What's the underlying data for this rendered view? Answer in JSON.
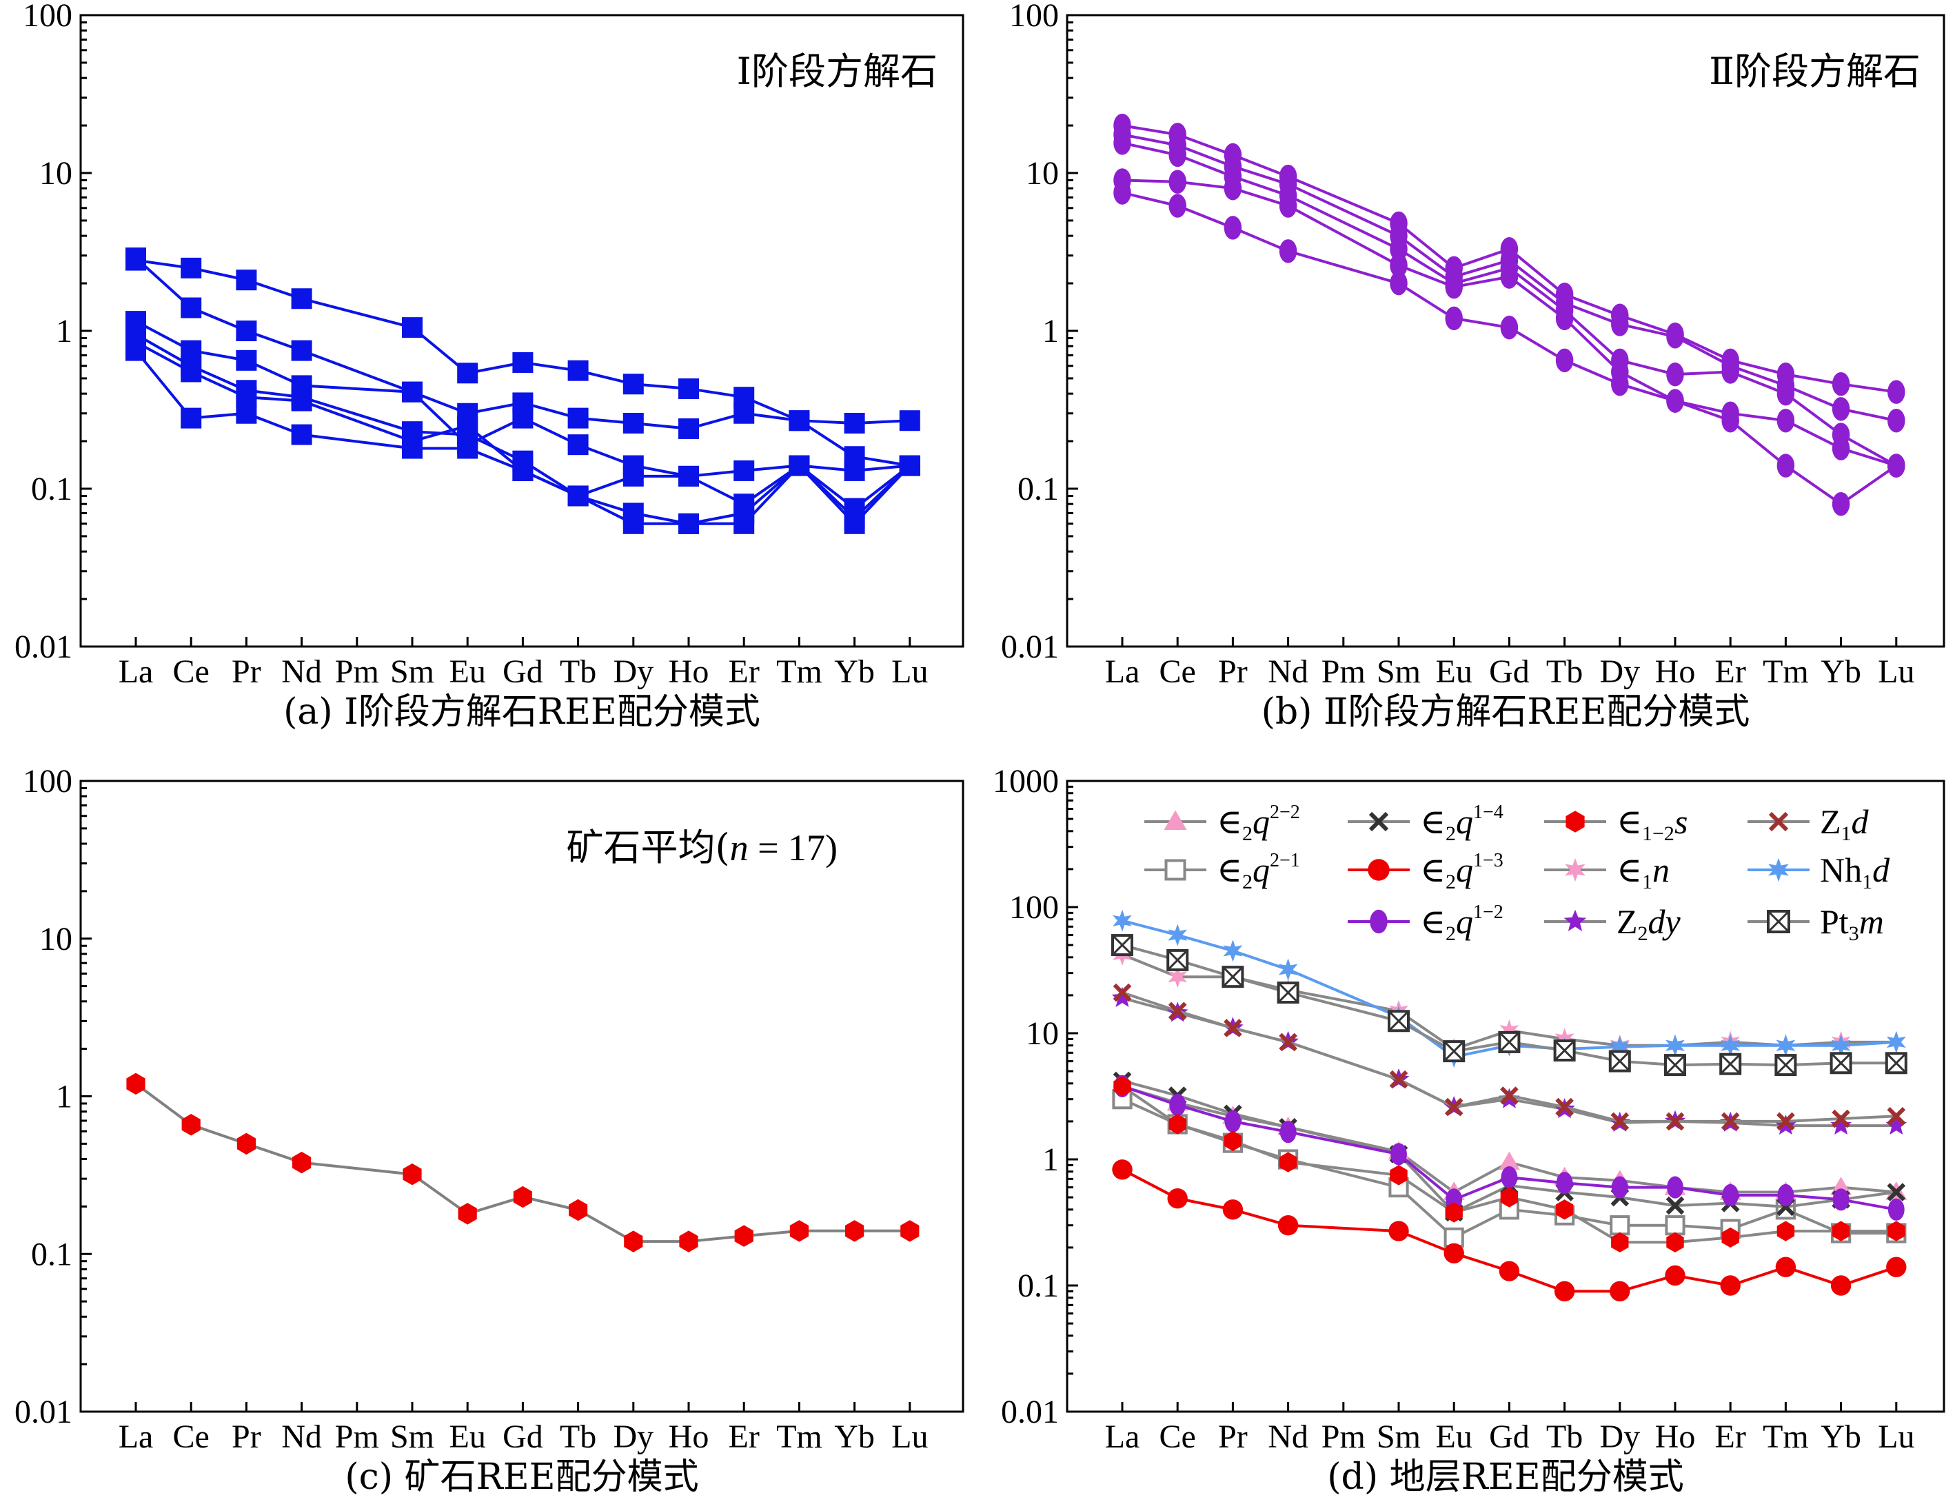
{
  "chart_data": [
    {
      "type": "line",
      "panel": "a",
      "title": "Ⅰ阶段方解石",
      "caption": "(a) Ⅰ阶段方解石REE配分模式",
      "x": [
        "La",
        "Ce",
        "Pr",
        "Nd",
        "Pm",
        "Sm",
        "Eu",
        "Gd",
        "Tb",
        "Dy",
        "Ho",
        "Er",
        "Tm",
        "Yb",
        "Lu"
      ],
      "yscale": "log",
      "ylim": [
        0.01,
        100
      ],
      "yticks": [
        "0.01",
        "0.1",
        "1",
        "10",
        "100"
      ],
      "color": "#0a14e6",
      "marker": "square",
      "series": [
        {
          "values": [
            2.8,
            2.5,
            2.1,
            1.6,
            null,
            1.05,
            0.54,
            0.63,
            0.56,
            0.46,
            0.43,
            0.38,
            0.27,
            0.26,
            0.27
          ]
        },
        {
          "values": [
            2.9,
            1.4,
            1.0,
            0.75,
            null,
            0.41,
            0.3,
            0.35,
            0.28,
            0.26,
            0.24,
            0.3,
            0.27,
            0.16,
            0.14
          ]
        },
        {
          "values": [
            1.15,
            0.75,
            0.65,
            0.45,
            null,
            0.41,
            0.19,
            0.28,
            0.19,
            0.14,
            0.12,
            0.13,
            0.14,
            0.13,
            0.14
          ]
        },
        {
          "values": [
            0.95,
            0.6,
            0.42,
            0.38,
            null,
            0.23,
            0.22,
            0.15,
            0.09,
            0.12,
            0.12,
            0.08,
            0.14,
            0.075,
            0.14
          ]
        },
        {
          "values": [
            0.85,
            0.55,
            0.38,
            0.36,
            null,
            0.2,
            0.25,
            0.13,
            0.09,
            0.07,
            0.06,
            0.07,
            0.14,
            0.065,
            0.14
          ]
        },
        {
          "values": [
            0.75,
            0.28,
            0.3,
            0.22,
            null,
            0.18,
            0.18,
            0.13,
            0.09,
            0.06,
            0.06,
            0.06,
            0.14,
            0.06,
            0.14
          ]
        }
      ]
    },
    {
      "type": "line",
      "panel": "b",
      "title": "Ⅱ阶段方解石",
      "caption": "(b) Ⅱ阶段方解石REE配分模式",
      "x": [
        "La",
        "Ce",
        "Pr",
        "Nd",
        "Pm",
        "Sm",
        "Eu",
        "Gd",
        "Tb",
        "Dy",
        "Ho",
        "Er",
        "Tm",
        "Yb",
        "Lu"
      ],
      "yscale": "log",
      "ylim": [
        0.01,
        100
      ],
      "yticks": [
        "0.01",
        "0.1",
        "1",
        "10",
        "100"
      ],
      "color": "#8e1fd0",
      "marker": "ellipse",
      "series": [
        {
          "values": [
            20,
            17.5,
            13,
            9.5,
            null,
            4.8,
            2.5,
            3.3,
            1.7,
            1.25,
            0.95,
            0.65,
            0.53,
            0.46,
            0.41
          ]
        },
        {
          "values": [
            17.5,
            15,
            11,
            8.5,
            null,
            4.0,
            2.2,
            2.8,
            1.5,
            1.1,
            0.92,
            0.6,
            0.45,
            0.32,
            0.27
          ]
        },
        {
          "values": [
            15.5,
            13,
            9.5,
            7.2,
            null,
            3.3,
            2.0,
            2.5,
            1.35,
            0.65,
            0.53,
            0.55,
            0.4,
            0.22,
            0.14
          ]
        },
        {
          "values": [
            9,
            8.8,
            8,
            6.2,
            null,
            2.6,
            1.9,
            2.2,
            1.2,
            0.55,
            0.36,
            0.3,
            0.27,
            0.18,
            0.14
          ]
        },
        {
          "values": [
            7.5,
            6.2,
            4.5,
            3.2,
            null,
            2.0,
            1.2,
            1.05,
            0.65,
            0.46,
            0.36,
            0.27,
            0.14,
            0.08,
            0.14
          ]
        }
      ]
    },
    {
      "type": "line",
      "panel": "c",
      "title": "矿石平均(n = 17)",
      "caption": "(c) 矿石REE配分模式",
      "x": [
        "La",
        "Ce",
        "Pr",
        "Nd",
        "Pm",
        "Sm",
        "Eu",
        "Gd",
        "Tb",
        "Dy",
        "Ho",
        "Er",
        "Tm",
        "Yb",
        "Lu"
      ],
      "yscale": "log",
      "ylim": [
        0.01,
        100
      ],
      "yticks": [
        "0.01",
        "0.1",
        "1",
        "10",
        "100"
      ],
      "series": [
        {
          "values": [
            1.2,
            0.66,
            0.5,
            0.38,
            null,
            0.32,
            0.18,
            0.23,
            0.19,
            0.12,
            0.12,
            0.13,
            0.14,
            0.14,
            0.14
          ]
        }
      ]
    },
    {
      "type": "line",
      "panel": "d",
      "caption": "(d) 地层REE配分模式",
      "x": [
        "La",
        "Ce",
        "Pr",
        "Nd",
        "Pm",
        "Sm",
        "Eu",
        "Gd",
        "Tb",
        "Dy",
        "Ho",
        "Er",
        "Tm",
        "Yb",
        "Lu"
      ],
      "yscale": "log",
      "ylim": [
        0.01,
        1000
      ],
      "yticks": [
        "0.01",
        "0.1",
        "1",
        "10",
        "100",
        "1000"
      ],
      "series": [
        {
          "name": "∈2q2-2",
          "legend_base": "∈",
          "legend_sub": "2",
          "legend_main": "q",
          "legend_sup": "2−2",
          "color": "#f59ac7",
          "line_color": "#888888",
          "marker": "triangle",
          "values": [
            3.8,
            2.8,
            2.2,
            1.8,
            null,
            1.15,
            0.55,
            0.95,
            0.72,
            0.68,
            0.6,
            0.55,
            0.55,
            0.6,
            0.55
          ]
        },
        {
          "name": "∈2q2-1",
          "legend_base": "∈",
          "legend_sub": "2",
          "legend_main": "q",
          "legend_sup": "2−1",
          "color": "#888888",
          "line_color": "#888888",
          "marker": "square-open",
          "values": [
            3.0,
            1.9,
            1.35,
            1.0,
            null,
            0.6,
            0.24,
            0.4,
            0.36,
            0.3,
            0.3,
            0.28,
            0.4,
            0.26,
            0.26
          ]
        },
        {
          "name": "∈2q1-4",
          "legend_base": "∈",
          "legend_sub": "2",
          "legend_main": "q",
          "legend_sup": "1−4",
          "color": "#333333",
          "line_color": "#888888",
          "marker": "x",
          "values": [
            4.2,
            3.2,
            2.3,
            1.8,
            null,
            1.1,
            0.38,
            0.62,
            0.55,
            0.5,
            0.43,
            0.45,
            0.42,
            0.48,
            0.55
          ]
        },
        {
          "name": "∈2q1-3",
          "legend_base": "∈",
          "legend_sub": "2",
          "legend_main": "q",
          "legend_sup": "1−3",
          "color": "#ee0000",
          "line_color": "#ee0000",
          "marker": "circle",
          "values": [
            0.83,
            0.49,
            0.4,
            0.3,
            null,
            0.27,
            0.18,
            0.13,
            0.09,
            0.09,
            0.12,
            0.1,
            0.14,
            0.1,
            0.14
          ]
        },
        {
          "name": "∈2q1-2",
          "legend_base": "∈",
          "legend_sub": "2",
          "legend_main": "q",
          "legend_sup": "1−2",
          "color": "#8e1fd0",
          "line_color": "#8e1fd0",
          "marker": "ellipse",
          "values": [
            3.8,
            2.7,
            2.0,
            1.65,
            null,
            1.1,
            0.48,
            0.72,
            0.65,
            0.6,
            0.6,
            0.52,
            0.52,
            0.48,
            0.4
          ]
        },
        {
          "name": "∈1-2s",
          "legend_base": "∈",
          "legend_sub": "1−2",
          "legend_main": "s",
          "legend_sup": "",
          "color": "#ee0000",
          "line_color": "#888888",
          "marker": "hexagon",
          "values": [
            3.8,
            1.9,
            1.4,
            0.95,
            null,
            0.75,
            0.38,
            0.5,
            0.4,
            0.22,
            0.22,
            0.24,
            0.27,
            0.27,
            0.27
          ]
        },
        {
          "name": "∈1n",
          "legend_base": "∈",
          "legend_sub": "1",
          "legend_main": "n",
          "legend_sup": "",
          "color": "#f59ac7",
          "line_color": "#888888",
          "marker": "star6",
          "values": [
            42,
            28,
            28,
            22,
            null,
            15,
            7.5,
            10.5,
            9,
            8,
            8,
            8.5,
            8,
            8.5,
            8.5
          ]
        },
        {
          "name": "Z2dy",
          "legend_base": "Z",
          "legend_sub": "2",
          "legend_main": "dy",
          "legend_sup": "",
          "color": "#8e1fd0",
          "line_color": "#888888",
          "marker": "star5",
          "values": [
            19,
            14.5,
            11,
            8.5,
            null,
            4.3,
            2.6,
            3.0,
            2.5,
            1.95,
            2.0,
            1.95,
            1.85,
            1.85,
            1.85
          ]
        },
        {
          "name": "Z1d",
          "legend_base": "Z",
          "legend_sub": "1",
          "legend_main": "d",
          "legend_sup": "",
          "color": "#a03030",
          "line_color": "#888888",
          "marker": "x",
          "values": [
            21,
            15,
            11,
            8.5,
            null,
            4.3,
            2.6,
            3.2,
            2.6,
            2.0,
            2.0,
            2.0,
            2.0,
            2.1,
            2.2
          ]
        },
        {
          "name": "Nh1d",
          "legend_base": "Nh",
          "legend_sub": "1",
          "legend_main": "d",
          "legend_sup": "",
          "color": "#5b9bf0",
          "line_color": "#5b9bf0",
          "marker": "star6",
          "values": [
            78,
            60,
            45,
            32,
            null,
            13.5,
            6.5,
            8.0,
            7.5,
            7.8,
            8.0,
            8.0,
            8.0,
            8.0,
            8.5
          ]
        },
        {
          "name": "Pt3m",
          "legend_base": "Pt",
          "legend_sub": "3",
          "legend_main": "m",
          "legend_sup": "",
          "color": "#333333",
          "line_color": "#888888",
          "marker": "square-x",
          "values": [
            50,
            38,
            28,
            21,
            null,
            12.5,
            7.2,
            8.5,
            7.3,
            6.0,
            5.6,
            5.7,
            5.6,
            5.8,
            5.8
          ]
        }
      ]
    }
  ]
}
